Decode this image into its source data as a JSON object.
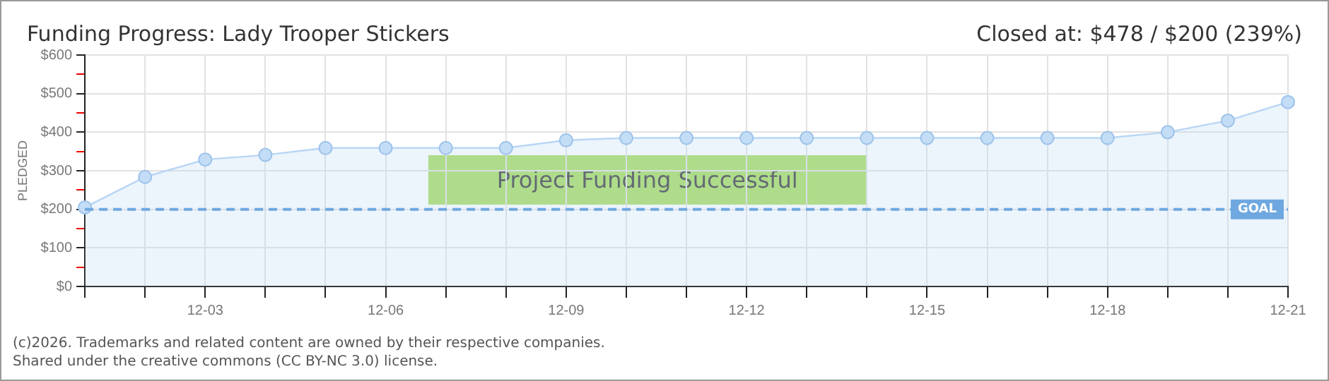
{
  "chart_data": {
    "type": "area",
    "title": "Funding Progress: Lady Trooper Stickers",
    "subtitle": "Closed at: $478 / $200 (239%)",
    "ylabel": "PLEDGED",
    "categories": [
      null,
      null,
      "12-03",
      null,
      null,
      "12-06",
      null,
      null,
      "12-09",
      null,
      null,
      "12-12",
      null,
      null,
      "12-15",
      null,
      null,
      "12-18",
      null,
      null,
      "12-21"
    ],
    "series": [
      {
        "color": "#b8d6f5",
        "values": [
          205,
          284,
          329,
          341,
          359,
          359,
          359,
          359,
          379,
          385,
          385,
          385,
          385,
          385,
          385,
          385,
          385,
          385,
          400,
          430,
          478
        ]
      }
    ],
    "ylim": [
      0,
      600
    ],
    "yticks": [
      {
        "value": 0,
        "label": "$0"
      },
      {
        "value": 50,
        "label": null
      },
      {
        "value": 100,
        "label": "$100"
      },
      {
        "value": 150,
        "label": null
      },
      {
        "value": 200,
        "label": "$200"
      },
      {
        "value": 250,
        "label": null
      },
      {
        "value": 300,
        "label": "$300"
      },
      {
        "value": 350,
        "label": null
      },
      {
        "value": 400,
        "label": "$400"
      },
      {
        "value": 450,
        "label": null
      },
      {
        "value": 500,
        "label": "$500"
      },
      {
        "value": 550,
        "label": null
      },
      {
        "value": 600,
        "label": "$600"
      }
    ],
    "ref_lines": [
      {
        "axis": "y",
        "value": 200,
        "label": "GOAL",
        "color": "#6fa8e0",
        "line_style": "dashed"
      }
    ],
    "annotations": [
      "Project Funding Successful",
      "(c)2026. Trademarks and related content are owned by their respective companies.",
      "Shared under the creative commons (CC BY-NC 3.0) license."
    ],
    "grid": true,
    "legend": false,
    "marker": "circle",
    "line_style": "solid"
  }
}
